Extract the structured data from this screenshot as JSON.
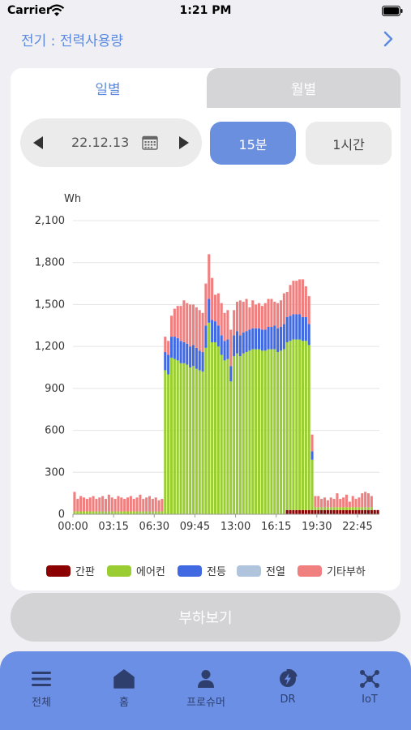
{
  "status": {
    "carrier": "Carrier",
    "time": "1:21 PM"
  },
  "header": {
    "title": "전기 : 전력사용량"
  },
  "tabs": {
    "daily": "일별",
    "monthly": "월별"
  },
  "date_picker": {
    "date": "22.12.13"
  },
  "interval": {
    "min15": "15분",
    "hour1": "1시간"
  },
  "chart_data": {
    "type": "bar",
    "stacked": true,
    "ylabel": "Wh",
    "ylim": [
      0,
      2100
    ],
    "yticks": [
      "0",
      "300",
      "600",
      "900",
      "1,200",
      "1,500",
      "1,800",
      "2,100"
    ],
    "xticks": [
      "00:00",
      "03:15",
      "06:30",
      "09:45",
      "13:00",
      "16:15",
      "19:30",
      "22:45"
    ],
    "interval_minutes": 15,
    "grid": true,
    "legend_position": "bottom",
    "series": [
      {
        "name": "간판",
        "color": "#8b0000",
        "values": [
          0,
          0,
          0,
          0,
          0,
          0,
          0,
          0,
          0,
          0,
          0,
          0,
          0,
          0,
          0,
          0,
          0,
          0,
          0,
          0,
          0,
          0,
          0,
          0,
          0,
          0,
          0,
          0,
          0,
          0,
          0,
          0,
          0,
          0,
          0,
          0,
          0,
          0,
          0,
          0,
          0,
          0,
          0,
          0,
          0,
          0,
          0,
          0,
          0,
          0,
          0,
          0,
          0,
          0,
          0,
          0,
          0,
          0,
          0,
          0,
          0,
          0,
          0,
          0,
          0,
          0,
          0,
          0,
          30,
          30,
          30,
          30,
          30,
          30,
          30,
          30,
          30,
          30,
          30,
          30,
          30,
          30,
          30,
          30,
          30,
          30,
          30,
          30,
          30,
          30,
          30,
          30,
          30,
          30,
          30,
          30,
          30,
          30
        ]
      },
      {
        "name": "에어컨",
        "color": "#9acd32",
        "values": [
          20,
          20,
          20,
          20,
          20,
          20,
          20,
          20,
          20,
          20,
          20,
          20,
          20,
          20,
          20,
          20,
          20,
          20,
          20,
          20,
          20,
          20,
          20,
          20,
          20,
          20,
          20,
          20,
          20,
          1030,
          1000,
          1120,
          1110,
          1100,
          1080,
          1080,
          1070,
          1050,
          1060,
          1040,
          1030,
          1020,
          1190,
          1370,
          1230,
          1230,
          1200,
          1140,
          1100,
          1110,
          950,
          1130,
          1150,
          1130,
          1150,
          1160,
          1170,
          1180,
          1180,
          1180,
          1170,
          1170,
          1180,
          1180,
          1180,
          1160,
          1170,
          1180,
          1200,
          1210,
          1220,
          1220,
          1220,
          1210,
          1210,
          1180,
          360,
          20,
          20,
          20,
          20,
          20,
          20,
          20,
          20,
          20,
          20,
          20,
          20,
          20,
          20,
          20,
          20,
          20,
          20,
          20
        ]
      },
      {
        "name": "전등",
        "color": "#4169e1",
        "values": [
          0,
          0,
          0,
          0,
          0,
          0,
          0,
          0,
          0,
          0,
          0,
          0,
          0,
          0,
          0,
          0,
          0,
          0,
          0,
          0,
          0,
          0,
          0,
          0,
          0,
          0,
          0,
          0,
          0,
          130,
          140,
          150,
          160,
          160,
          160,
          150,
          150,
          150,
          150,
          150,
          140,
          140,
          160,
          170,
          160,
          150,
          150,
          140,
          140,
          140,
          110,
          150,
          160,
          150,
          150,
          150,
          150,
          150,
          150,
          150,
          150,
          150,
          160,
          160,
          170,
          170,
          170,
          180,
          180,
          180,
          180,
          180,
          180,
          170,
          170,
          150,
          60,
          0,
          0,
          0,
          0,
          0,
          0,
          0,
          0,
          0,
          0,
          0,
          0,
          0,
          0,
          0,
          0,
          0,
          0,
          0
        ]
      },
      {
        "name": "전열",
        "color": "#b0c4de",
        "values": [
          0,
          0,
          0,
          0,
          0,
          0,
          0,
          0,
          0,
          0,
          0,
          0,
          0,
          0,
          0,
          0,
          0,
          0,
          0,
          0,
          0,
          0,
          0,
          0,
          0,
          0,
          0,
          0,
          0,
          0,
          0,
          0,
          0,
          0,
          0,
          0,
          0,
          0,
          0,
          0,
          0,
          0,
          0,
          0,
          0,
          0,
          0,
          0,
          0,
          0,
          0,
          0,
          0,
          0,
          0,
          0,
          0,
          0,
          0,
          0,
          0,
          0,
          0,
          0,
          0,
          0,
          0,
          0,
          0,
          0,
          0,
          0,
          0,
          0,
          0,
          0,
          0,
          0,
          0,
          0,
          0,
          0,
          0,
          0,
          0,
          0,
          0,
          0,
          0,
          0,
          0,
          0,
          0,
          0,
          0,
          0
        ]
      },
      {
        "name": "기타부하",
        "color": "#f08080",
        "values": [
          140,
          90,
          110,
          100,
          90,
          100,
          110,
          90,
          100,
          110,
          90,
          120,
          100,
          90,
          110,
          100,
          90,
          100,
          110,
          90,
          100,
          120,
          90,
          100,
          110,
          90,
          100,
          80,
          90,
          110,
          100,
          150,
          200,
          230,
          250,
          300,
          290,
          300,
          290,
          290,
          290,
          280,
          300,
          320,
          300,
          190,
          230,
          230,
          200,
          210,
          260,
          180,
          210,
          250,
          220,
          230,
          160,
          200,
          170,
          180,
          170,
          190,
          200,
          200,
          170,
          180,
          190,
          220,
          180,
          220,
          240,
          240,
          250,
          270,
          220,
          200,
          120,
          80,
          80,
          60,
          70,
          50,
          70,
          60,
          100,
          60,
          70,
          90,
          40,
          80,
          60,
          70,
          100,
          110,
          100,
          80
        ]
      }
    ]
  },
  "legend": [
    {
      "label": "간판",
      "color": "#8b0000"
    },
    {
      "label": "에어컨",
      "color": "#9acd32"
    },
    {
      "label": "전등",
      "color": "#4169e1"
    },
    {
      "label": "전열",
      "color": "#b0c4de"
    },
    {
      "label": "기타부하",
      "color": "#f08080"
    }
  ],
  "load_button": {
    "label": "부하보기"
  },
  "tabbar": [
    {
      "label": "전체",
      "icon": "menu-icon"
    },
    {
      "label": "홈",
      "icon": "home-icon"
    },
    {
      "label": "프로슈머",
      "icon": "person-icon"
    },
    {
      "label": "DR",
      "icon": "bolt-icon"
    },
    {
      "label": "IoT",
      "icon": "network-icon"
    }
  ]
}
